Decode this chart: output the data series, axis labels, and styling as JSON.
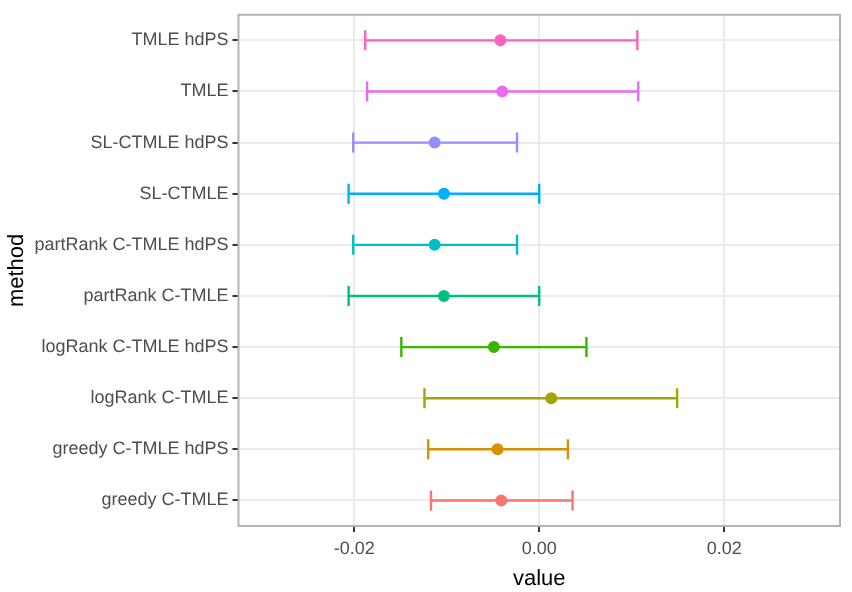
{
  "chart_data": {
    "type": "scatter",
    "orientation": "horizontal",
    "xlabel": "value",
    "ylabel": "method",
    "categories": [
      "TMLE hdPS",
      "TMLE",
      "SL-CTMLE hdPS",
      "SL-CTMLE",
      "partRank C-TMLE hdPS",
      "partRank C-TMLE",
      "logRank C-TMLE hdPS",
      "logRank C-TMLE",
      "greedy C-TMLE hdPS",
      "greedy C-TMLE"
    ],
    "values": [
      -0.0042,
      -0.004,
      -0.0113,
      -0.0103,
      -0.0113,
      -0.0103,
      -0.0049,
      0.0013,
      -0.0045,
      -0.0041
    ],
    "errors": [
      [
        -0.0188,
        0.0106
      ],
      [
        -0.0186,
        0.0107
      ],
      [
        -0.0201,
        -0.0024
      ],
      [
        -0.0206,
        0.0
      ],
      [
        -0.0201,
        -0.0024
      ],
      [
        -0.0206,
        0.0
      ],
      [
        -0.0149,
        0.0051
      ],
      [
        -0.0124,
        0.0149
      ],
      [
        -0.012,
        0.0031
      ],
      [
        -0.0117,
        0.0036
      ]
    ],
    "colors": [
      "#ff62bc",
      "#e76bf3",
      "#9590ff",
      "#00b0f6",
      "#00bfc4",
      "#00bf7d",
      "#39b600",
      "#a3a500",
      "#d89000",
      "#f8766d"
    ],
    "xlim": [
      -0.0325,
      0.0325
    ],
    "xticks": [
      {
        "value": -0.02,
        "label": "-0.02"
      },
      {
        "value": 0,
        "label": "0.00"
      },
      {
        "value": 0.02,
        "label": "0.02"
      }
    ],
    "grid": true,
    "marker": "circle"
  }
}
